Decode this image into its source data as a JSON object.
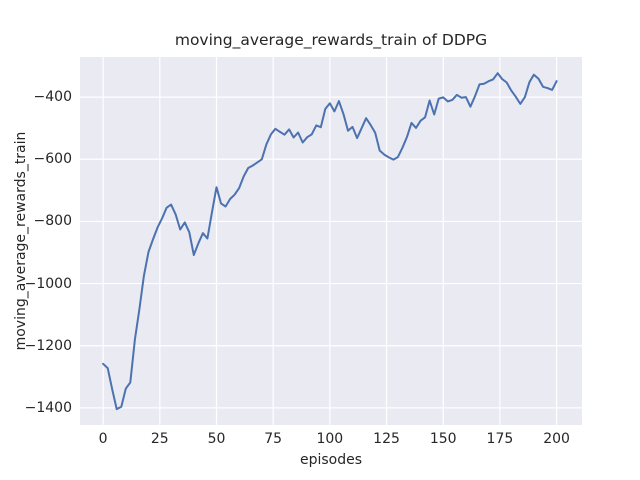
{
  "chart_data": {
    "type": "line",
    "title": "moving_average_rewards_train of DDPG",
    "xlabel": "episodes",
    "ylabel": "moving_average_rewards_train",
    "x_ticks": [
      0,
      25,
      50,
      75,
      100,
      125,
      150,
      175,
      200
    ],
    "y_ticks": [
      -1400,
      -1200,
      -1000,
      -800,
      -600,
      -400
    ],
    "xlim": [
      -10.2,
      211.2
    ],
    "ylim": [
      -1455,
      -271
    ],
    "grid": true,
    "legend": "none",
    "theme": "seaborn-darkgrid",
    "colors": {
      "line": "#4C72B0",
      "plot_background": "#EAEAF2",
      "grid": "#FFFFFF",
      "text": "#262626",
      "figure_background": "#FFFFFF"
    },
    "series": [
      {
        "name": "moving_average_rewards_train",
        "x": [
          0,
          2,
          4,
          6,
          8,
          10,
          12,
          14,
          16,
          18,
          20,
          22,
          24,
          26,
          28,
          30,
          32,
          34,
          36,
          38,
          40,
          42,
          44,
          46,
          48,
          50,
          52,
          54,
          56,
          58,
          60,
          62,
          64,
          66,
          68,
          70,
          72,
          74,
          76,
          78,
          80,
          82,
          84,
          86,
          88,
          90,
          92,
          94,
          96,
          98,
          100,
          102,
          104,
          106,
          108,
          110,
          112,
          114,
          116,
          118,
          120,
          122,
          124,
          126,
          128,
          130,
          132,
          134,
          136,
          138,
          140,
          142,
          144,
          146,
          148,
          150,
          152,
          154,
          156,
          158,
          160,
          162,
          164,
          166,
          168,
          170,
          172,
          174,
          176,
          178,
          180,
          182,
          184,
          186,
          188,
          190,
          192,
          194,
          196,
          198,
          200
        ],
        "y": [
          -1258,
          -1272,
          -1340,
          -1404,
          -1396,
          -1338,
          -1318,
          -1180,
          -1082,
          -975,
          -898,
          -858,
          -820,
          -790,
          -756,
          -746,
          -778,
          -826,
          -803,
          -835,
          -908,
          -870,
          -838,
          -855,
          -770,
          -690,
          -742,
          -752,
          -728,
          -714,
          -692,
          -655,
          -628,
          -620,
          -610,
          -600,
          -552,
          -520,
          -502,
          -512,
          -521,
          -504,
          -530,
          -514,
          -546,
          -529,
          -520,
          -491,
          -497,
          -438,
          -420,
          -446,
          -413,
          -455,
          -508,
          -496,
          -532,
          -500,
          -468,
          -490,
          -515,
          -572,
          -585,
          -594,
          -601,
          -593,
          -563,
          -528,
          -483,
          -499,
          -476,
          -465,
          -411,
          -456,
          -405,
          -401,
          -414,
          -409,
          -393,
          -402,
          -400,
          -431,
          -397,
          -359,
          -357,
          -349,
          -343,
          -323,
          -342,
          -353,
          -379,
          -399,
          -422,
          -400,
          -352,
          -328,
          -341,
          -367,
          -371,
          -377,
          -349
        ]
      }
    ]
  }
}
